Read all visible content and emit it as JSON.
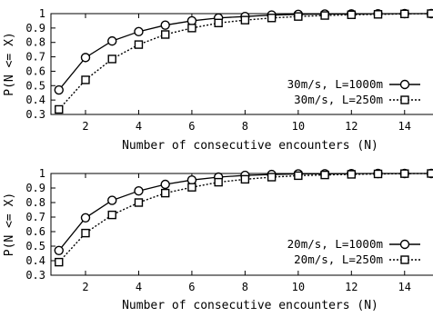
{
  "chart_data": [
    {
      "type": "line",
      "xlabel": "Number of consecutive encounters (N)",
      "ylabel": "P(N <= X)",
      "xlim": [
        0.7,
        15
      ],
      "ylim": [
        0.3,
        1.0
      ],
      "xticks": [
        2,
        4,
        6,
        8,
        10,
        12,
        14
      ],
      "yticks": [
        0.3,
        0.4,
        0.5,
        0.6,
        0.7,
        0.8,
        0.9,
        1
      ],
      "grid": false,
      "legend_position": "bottom-right",
      "series": [
        {
          "name": "30m/s, L=1000m",
          "style": "solid",
          "marker": "circle",
          "x": [
            1,
            2,
            3,
            4,
            5,
            6,
            7,
            8,
            9,
            10,
            11,
            12,
            13,
            14,
            15
          ],
          "y": [
            0.47,
            0.695,
            0.81,
            0.875,
            0.92,
            0.95,
            0.97,
            0.98,
            0.99,
            0.995,
            0.997,
            0.998,
            0.999,
            1.0,
            1.0
          ]
        },
        {
          "name": "30m/s, L=250m",
          "style": "dotted",
          "marker": "square",
          "x": [
            1,
            2,
            3,
            4,
            5,
            6,
            7,
            8,
            9,
            10,
            11,
            12,
            13,
            14,
            15
          ],
          "y": [
            0.335,
            0.54,
            0.685,
            0.785,
            0.855,
            0.9,
            0.935,
            0.955,
            0.97,
            0.98,
            0.987,
            0.992,
            0.995,
            0.998,
            1.0
          ]
        }
      ]
    },
    {
      "type": "line",
      "xlabel": "Number of consecutive encounters (N)",
      "ylabel": "P(N <= X)",
      "xlim": [
        0.7,
        15
      ],
      "ylim": [
        0.3,
        1.0
      ],
      "xticks": [
        2,
        4,
        6,
        8,
        10,
        12,
        14
      ],
      "yticks": [
        0.3,
        0.4,
        0.5,
        0.6,
        0.7,
        0.8,
        0.9,
        1
      ],
      "grid": false,
      "legend_position": "bottom-right",
      "series": [
        {
          "name": "20m/s, L=1000m",
          "style": "solid",
          "marker": "circle",
          "x": [
            1,
            2,
            3,
            4,
            5,
            6,
            7,
            8,
            9,
            10,
            11,
            12,
            13,
            14,
            15
          ],
          "y": [
            0.47,
            0.695,
            0.815,
            0.88,
            0.925,
            0.955,
            0.975,
            0.987,
            0.993,
            0.997,
            0.998,
            0.999,
            1.0,
            1.0,
            1.0
          ]
        },
        {
          "name": "20m/s, L=250m",
          "style": "dotted",
          "marker": "square",
          "x": [
            1,
            2,
            3,
            4,
            5,
            6,
            7,
            8,
            9,
            10,
            11,
            12,
            13,
            14,
            15
          ],
          "y": [
            0.39,
            0.59,
            0.715,
            0.8,
            0.865,
            0.905,
            0.94,
            0.96,
            0.975,
            0.985,
            0.99,
            0.994,
            0.997,
            0.999,
            1.0
          ]
        }
      ]
    }
  ]
}
